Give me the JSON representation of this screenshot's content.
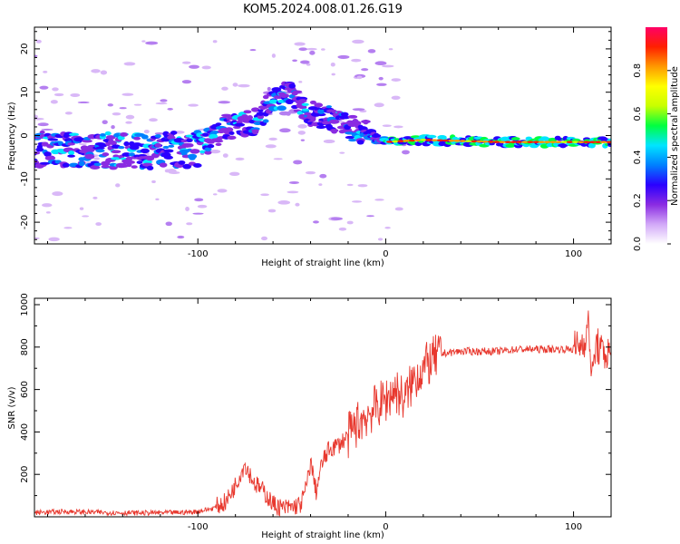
{
  "figure": {
    "title": "KOM5.2024.008.01.26.G19"
  },
  "chart_data": [
    {
      "type": "heatmap",
      "title": "KOM5.2024.008.01.26.G19",
      "xlabel": "Height of straight line (km)",
      "ylabel": "Frequency (Hz)",
      "xlim": [
        -187,
        120
      ],
      "ylim": [
        -25,
        25
      ],
      "xticks": [
        -100,
        0,
        100
      ],
      "yticks": [
        20,
        10,
        0,
        -10,
        -20
      ],
      "colorbar": {
        "label": "Normalized spectral amplitude",
        "range": [
          0,
          1
        ],
        "ticks": [
          0.0,
          0.2,
          0.4,
          0.6,
          0.8
        ],
        "colors": [
          "#ffffff",
          "#d2a8f8",
          "#8a2be2",
          "#2a00ff",
          "#0080ff",
          "#00e5ff",
          "#00ff40",
          "#c8ff00",
          "#ffff00",
          "#ff9900",
          "#ff2000",
          "#ff0066"
        ]
      },
      "doppler_trace": [
        {
          "x": -187,
          "y": -3.0
        },
        {
          "x": -150,
          "y": -3.5
        },
        {
          "x": -120,
          "y": -3.5
        },
        {
          "x": -100,
          "y": -3.0
        },
        {
          "x": -85,
          "y": 2.0
        },
        {
          "x": -70,
          "y": 3.0
        },
        {
          "x": -60,
          "y": 8.0
        },
        {
          "x": -50,
          "y": 10.0
        },
        {
          "x": -40,
          "y": 5.0
        },
        {
          "x": -30,
          "y": 4.0
        },
        {
          "x": -20,
          "y": 2.0
        },
        {
          "x": -10,
          "y": 0.5
        },
        {
          "x": 0,
          "y": -1.5
        },
        {
          "x": 20,
          "y": -1.0
        },
        {
          "x": 60,
          "y": -1.5
        },
        {
          "x": 100,
          "y": -1.5
        },
        {
          "x": 120,
          "y": -1.5
        }
      ]
    },
    {
      "type": "line",
      "xlabel": "Height of straight line (km)",
      "ylabel": "SNR (v/v)",
      "xlim": [
        -187,
        120
      ],
      "ylim": [
        0,
        1030
      ],
      "xticks": [
        -100,
        0,
        100
      ],
      "yticks": [
        200,
        400,
        600,
        800,
        1000
      ],
      "series": [
        {
          "color": "#e8382e",
          "x": [
            -187,
            -170,
            -150,
            -130,
            -110,
            -100,
            -92,
            -85,
            -80,
            -75,
            -70,
            -65,
            -60,
            -55,
            -50,
            -45,
            -42,
            -40,
            -37,
            -34,
            -30,
            -25,
            -20,
            -15,
            -10,
            -5,
            0,
            5,
            10,
            15,
            20,
            25,
            30,
            40,
            50,
            60,
            70,
            80,
            90,
            100,
            105,
            108,
            110,
            112,
            115,
            120
          ],
          "y": [
            20,
            25,
            20,
            18,
            20,
            25,
            40,
            70,
            150,
            250,
            160,
            120,
            60,
            40,
            45,
            60,
            150,
            260,
            120,
            250,
            320,
            340,
            380,
            440,
            480,
            520,
            550,
            600,
            550,
            650,
            700,
            740,
            770,
            780,
            780,
            780,
            790,
            790,
            790,
            790,
            820,
            900,
            650,
            820,
            770,
            770
          ]
        }
      ]
    }
  ]
}
